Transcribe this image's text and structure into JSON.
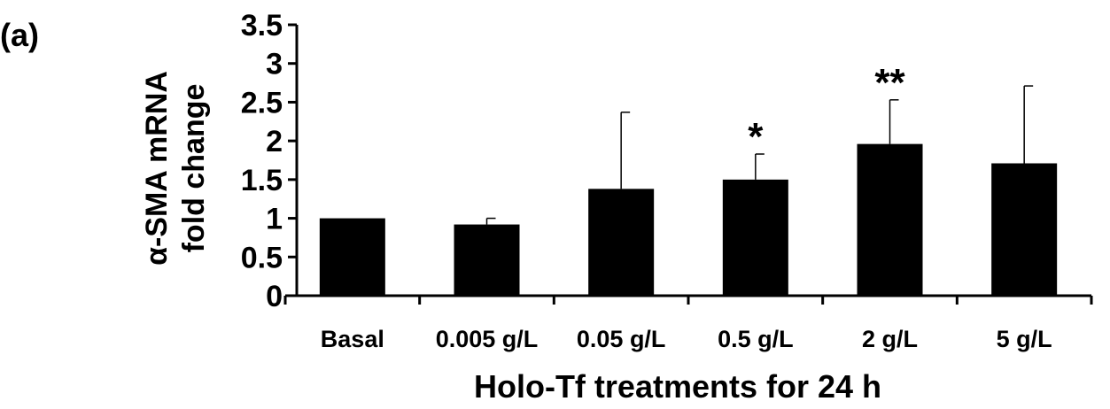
{
  "panel_label": "(a)",
  "chart_data": {
    "type": "bar",
    "title": "",
    "xlabel": "Holo-Tf treatments for 24 h",
    "ylabel_lines": [
      "α-SMA mRNA",
      "fold  change"
    ],
    "categories": [
      "Basal",
      "0.005 g/L",
      "0.05 g/L",
      "0.5 g/L",
      "2 g/L",
      "5 g/L"
    ],
    "values": [
      1.0,
      0.92,
      1.38,
      1.5,
      1.96,
      1.71
    ],
    "errors": [
      0.0,
      0.08,
      0.99,
      0.33,
      0.57,
      1.0
    ],
    "significance": [
      "",
      "",
      "",
      "*",
      "**",
      ""
    ],
    "ylim": [
      0,
      3.5
    ],
    "yticks": [
      "0",
      "0.5",
      "1",
      "1.5",
      "2",
      "2.5",
      "3",
      "3.5"
    ],
    "grid": false,
    "bar_color": "#000000"
  }
}
